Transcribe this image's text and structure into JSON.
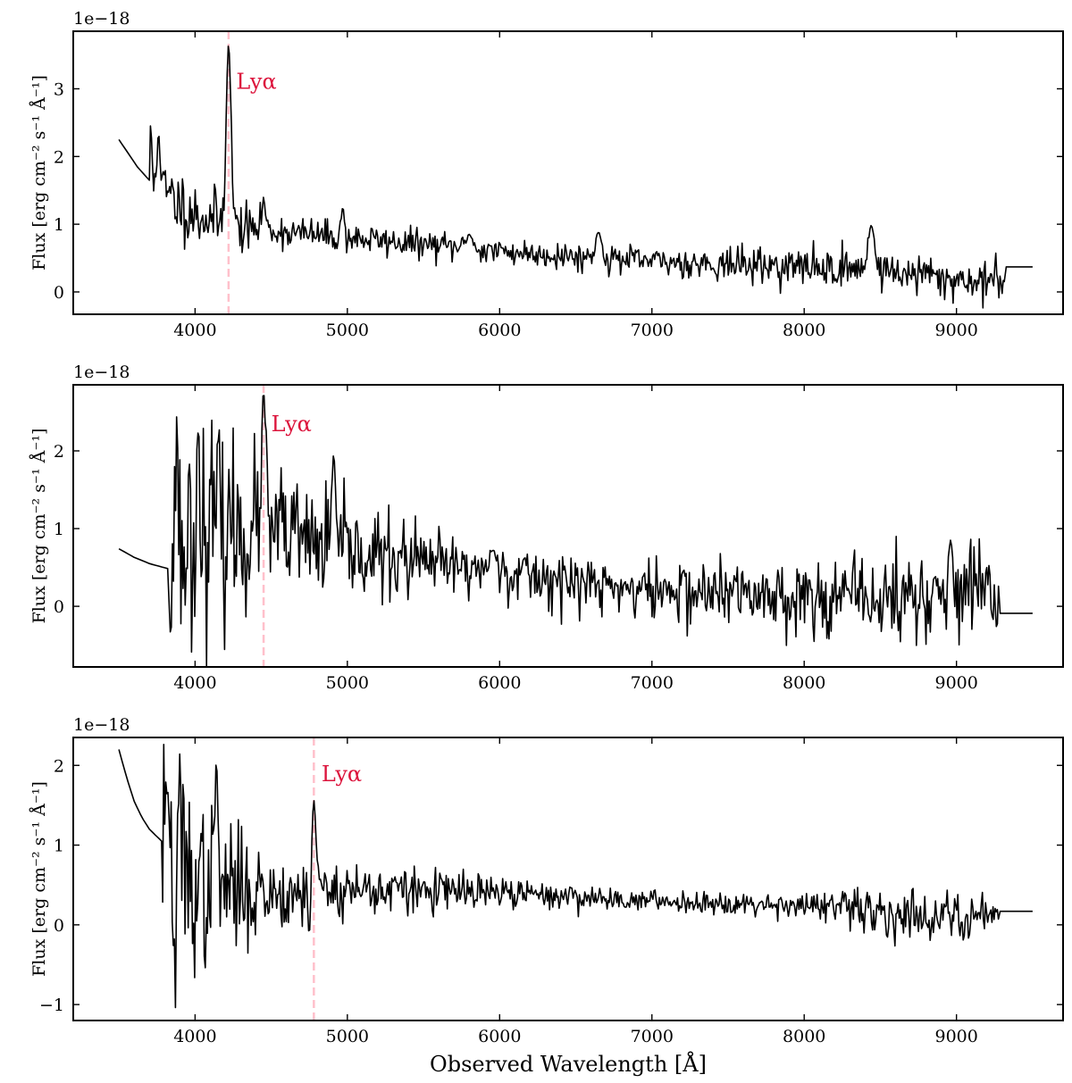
{
  "figure": {
    "xlabel": "Observed Wavelength [Å]",
    "line_color": "#000000",
    "marker_color": "#ffc0cb",
    "annotation_color": "#dc143c"
  },
  "chart_data": [
    {
      "type": "line",
      "xlabel": "",
      "ylabel": "Flux [erg cm⁻² s⁻¹ Å⁻¹]",
      "offset_text": "1e−18",
      "xlim": [
        3200,
        9700
      ],
      "ylim": [
        -0.33,
        3.85
      ],
      "xticks": [
        4000,
        5000,
        6000,
        7000,
        8000,
        9000
      ],
      "yticks": [
        0,
        1,
        2,
        3
      ],
      "marker_x": 4220,
      "annotation": "Lyα",
      "annotation_pos": [
        4270,
        3.0
      ],
      "series": {
        "seed": 11,
        "base": [
          [
            3500,
            2.25
          ],
          [
            3560,
            2.05
          ],
          [
            3620,
            1.85
          ],
          [
            3700,
            1.65
          ],
          [
            3800,
            1.45
          ],
          [
            4000,
            1.15
          ],
          [
            4300,
            0.95
          ],
          [
            5000,
            0.8
          ],
          [
            6000,
            0.6
          ],
          [
            7000,
            0.45
          ],
          [
            8000,
            0.37
          ],
          [
            8400,
            0.33
          ],
          [
            8600,
            0.3
          ],
          [
            9000,
            0.18
          ],
          [
            9300,
            0.15
          ]
        ],
        "noise": [
          [
            3710,
            0.3
          ],
          [
            3900,
            0.25
          ],
          [
            4200,
            0.22
          ],
          [
            4500,
            0.12
          ],
          [
            6000,
            0.1
          ],
          [
            7000,
            0.1
          ],
          [
            8000,
            0.14
          ],
          [
            8600,
            0.15
          ],
          [
            9300,
            0.16
          ]
        ],
        "x_start": 3500,
        "smooth_end": 3700,
        "noise_end": 9320,
        "flat_end": 9500,
        "flat_value": 0.37,
        "step": 7,
        "lines": [
          [
            3700,
            2.7,
            10
          ],
          [
            3760,
            2.35,
            10
          ],
          [
            4220,
            3.65,
            16
          ],
          [
            4450,
            1.4,
            10
          ],
          [
            4970,
            1.25,
            10
          ],
          [
            5800,
            0.85,
            20
          ],
          [
            6650,
            0.88,
            20
          ],
          [
            8440,
            0.98,
            22
          ]
        ]
      }
    },
    {
      "type": "line",
      "xlabel": "",
      "ylabel": "Flux [erg cm⁻² s⁻¹ Å⁻¹]",
      "offset_text": "1e−18",
      "xlim": [
        3200,
        9700
      ],
      "ylim": [
        -0.78,
        2.85
      ],
      "xticks": [
        4000,
        5000,
        6000,
        7000,
        8000,
        9000
      ],
      "yticks": [
        0,
        1,
        2
      ],
      "marker_x": 4450,
      "annotation": "Lyα",
      "annotation_pos": [
        4500,
        2.25
      ],
      "series": {
        "seed": 23,
        "base": [
          [
            3500,
            0.74
          ],
          [
            3600,
            0.63
          ],
          [
            3700,
            0.55
          ],
          [
            3830,
            0.48
          ],
          [
            4000,
            1.0
          ],
          [
            4500,
            0.95
          ],
          [
            5000,
            0.7
          ],
          [
            5500,
            0.55
          ],
          [
            6000,
            0.45
          ],
          [
            6500,
            0.3
          ],
          [
            7000,
            0.2
          ],
          [
            8000,
            0.13
          ],
          [
            8500,
            0.1
          ],
          [
            9000,
            0.12
          ],
          [
            9280,
            0.12
          ]
        ],
        "noise": [
          [
            3840,
            0.75
          ],
          [
            4200,
            0.6
          ],
          [
            4600,
            0.4
          ],
          [
            5000,
            0.3
          ],
          [
            6000,
            0.18
          ],
          [
            7000,
            0.2
          ],
          [
            8000,
            0.22
          ],
          [
            8500,
            0.28
          ],
          [
            9000,
            0.32
          ],
          [
            9280,
            0.3
          ]
        ],
        "x_start": 3500,
        "smooth_end": 3830,
        "noise_end": 9280,
        "flat_end": 9500,
        "flat_value": -0.09,
        "step": 7,
        "lines": [
          [
            3880,
            2.45,
            8
          ],
          [
            4020,
            2.25,
            8
          ],
          [
            4150,
            2.15,
            8
          ],
          [
            4450,
            2.75,
            14
          ],
          [
            4910,
            1.95,
            12
          ],
          [
            5960,
            0.72,
            25
          ],
          [
            8960,
            0.85,
            14
          ]
        ]
      }
    },
    {
      "type": "line",
      "xlabel": "Observed Wavelength [Å]",
      "ylabel": "Flux [erg cm⁻² s⁻¹ Å⁻¹]",
      "offset_text": "1e−18",
      "xlim": [
        3200,
        9700
      ],
      "ylim": [
        -1.2,
        2.35
      ],
      "xticks": [
        4000,
        5000,
        6000,
        7000,
        8000,
        9000
      ],
      "yticks": [
        -1,
        0,
        1,
        2
      ],
      "marker_x": 4780,
      "annotation": "Lyα",
      "annotation_pos": [
        4830,
        1.8
      ],
      "series": {
        "seed": 37,
        "base": [
          [
            3500,
            2.2
          ],
          [
            3550,
            1.85
          ],
          [
            3600,
            1.55
          ],
          [
            3650,
            1.35
          ],
          [
            3700,
            1.2
          ],
          [
            3780,
            1.05
          ],
          [
            4000,
            0.5
          ],
          [
            4500,
            0.4
          ],
          [
            5000,
            0.45
          ],
          [
            6000,
            0.4
          ],
          [
            7000,
            0.3
          ],
          [
            8000,
            0.25
          ],
          [
            8500,
            0.15
          ],
          [
            9000,
            0.1
          ],
          [
            9280,
            0.15
          ]
        ],
        "noise": [
          [
            3790,
            0.7
          ],
          [
            4000,
            0.55
          ],
          [
            4300,
            0.35
          ],
          [
            4700,
            0.2
          ],
          [
            5000,
            0.18
          ],
          [
            6000,
            0.1
          ],
          [
            7000,
            0.06
          ],
          [
            8000,
            0.08
          ],
          [
            8300,
            0.13
          ],
          [
            9000,
            0.15
          ],
          [
            9280,
            0.1
          ]
        ],
        "x_start": 3500,
        "smooth_end": 3780,
        "noise_end": 9280,
        "flat_end": 9500,
        "flat_value": 0.17,
        "step": 7,
        "lines": [
          [
            3810,
            1.85,
            8
          ],
          [
            3900,
            2.15,
            7
          ],
          [
            4140,
            2.05,
            10
          ],
          [
            4780,
            1.56,
            14
          ]
        ],
        "dips": [
          [
            3870,
            -1.05,
            7
          ],
          [
            4750,
            -0.12,
            8
          ]
        ]
      }
    }
  ]
}
